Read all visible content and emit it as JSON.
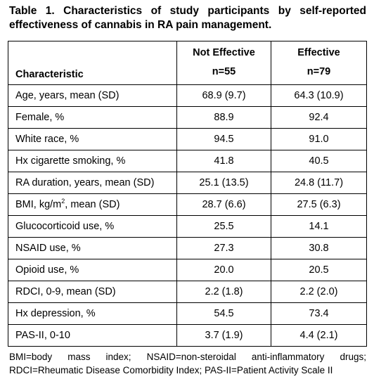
{
  "caption": "Table 1. Characteristics of study participants by self-reported effectiveness of cannabis in RA pain management.",
  "header": {
    "characteristic": "Characteristic",
    "col1_title": "Not Effective",
    "col1_n": "n=55",
    "col2_title": "Effective",
    "col2_n": "n=79"
  },
  "rows": [
    {
      "label": "Age, years, mean (SD)",
      "not_effective": "68.9 (9.7)",
      "effective": "64.3 (10.9)"
    },
    {
      "label": "Female, %",
      "not_effective": "88.9",
      "effective": "92.4"
    },
    {
      "label": "White race, %",
      "not_effective": "94.5",
      "effective": "91.0"
    },
    {
      "label": "Hx cigarette smoking, %",
      "not_effective": "41.8",
      "effective": "40.5"
    },
    {
      "label": "RA duration, years, mean (SD)",
      "not_effective": "25.1 (13.5)",
      "effective": "24.8 (11.7)"
    },
    {
      "label_pre": "BMI, kg/m",
      "label_sup": "2",
      "label_post": ", mean (SD)",
      "not_effective": "28.7 (6.6)",
      "effective": "27.5 (6.3)"
    },
    {
      "label": "Glucocorticoid use, %",
      "not_effective": "25.5",
      "effective": "14.1"
    },
    {
      "label": "NSAID use, %",
      "not_effective": "27.3",
      "effective": "30.8"
    },
    {
      "label": "Opioid use, %",
      "not_effective": "20.0",
      "effective": "20.5"
    },
    {
      "label": "RDCI, 0-9, mean (SD)",
      "not_effective": "2.2 (1.8)",
      "effective": "2.2 (2.0)"
    },
    {
      "label": "Hx depression, %",
      "not_effective": "54.5",
      "effective": "73.4"
    },
    {
      "label": "PAS-II, 0-10",
      "not_effective": "3.7 (1.9)",
      "effective": "4.4 (2.1)"
    }
  ],
  "footnote": "BMI=body mass index; NSAID=non-steroidal anti-inflammatory drugs; RDCI=Rheumatic Disease Comorbidity Index; PAS-II=Patient Activity Scale II"
}
